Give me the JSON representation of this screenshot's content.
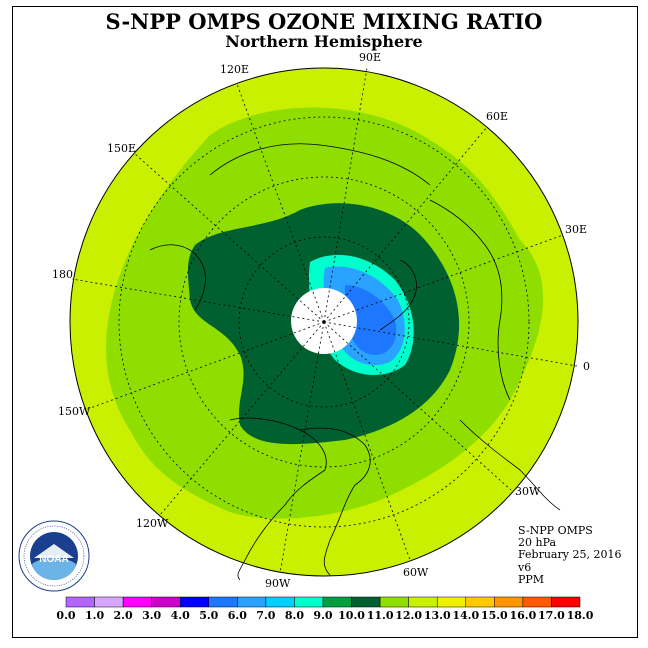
{
  "title": "S-NPP OMPS OZONE MIXING RATIO",
  "subtitle": "Northern Hemisphere",
  "longitude_labels": [
    "90E",
    "60E",
    "30E",
    "0",
    "30W",
    "60W",
    "90W",
    "120W",
    "150W",
    "180",
    "150E",
    "120E"
  ],
  "info": {
    "instrument": "S-NPP OMPS",
    "level": "20 hPa",
    "date": "February 25, 2016",
    "version": "v6",
    "units": "PPM"
  },
  "logo": {
    "text": "NOAA",
    "ring_text": "NATIONAL OCEANIC AND ATMOSPHERIC ADMINISTRATION U.S. DEPARTMENT OF COMMERCE"
  },
  "colorbar": {
    "labels": [
      "0.0",
      "1.0",
      "2.0",
      "3.0",
      "4.0",
      "5.0",
      "6.0",
      "7.0",
      "8.0",
      "9.0",
      "10.0",
      "11.0",
      "12.0",
      "13.0",
      "14.0",
      "15.0",
      "16.0",
      "17.0",
      "18.0"
    ],
    "colors": [
      "#b266ff",
      "#d9a6ff",
      "#ff00ff",
      "#cc00cc",
      "#0000ff",
      "#1e78ff",
      "#29a3ff",
      "#00d0ff",
      "#00ffcc",
      "#00a040",
      "#006030",
      "#8fde00",
      "#c8f000",
      "#f0f000",
      "#ffc800",
      "#ff9600",
      "#ff5a00",
      "#ff0000",
      "#8b5a2b"
    ]
  },
  "map_colors": {
    "outer": "#c8f000",
    "band_light": "#8fde00",
    "band_dark_mid": "#00a040",
    "band_dark": "#006030",
    "cyan": "#00ffcc",
    "light_blue": "#29a3ff",
    "blue": "#1e78ff",
    "no_data": "#ffffff"
  }
}
